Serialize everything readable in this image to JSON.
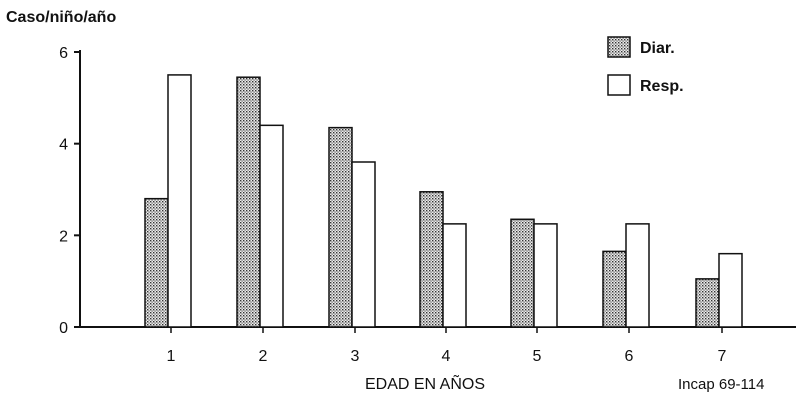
{
  "chart_data": {
    "type": "bar",
    "ylabel": "Caso/niño/año",
    "xlabel": "EDAD EN AÑOS",
    "annotation": "Incap 69-114",
    "categories": [
      "1",
      "2",
      "3",
      "4",
      "5",
      "6",
      "7"
    ],
    "series": [
      {
        "name": "Diar.",
        "values": [
          2.8,
          5.45,
          4.35,
          2.95,
          2.35,
          1.65,
          1.05
        ],
        "fill": "stippled"
      },
      {
        "name": "Resp.",
        "values": [
          5.5,
          4.4,
          3.6,
          2.25,
          2.25,
          2.25,
          1.6
        ],
        "fill": "white"
      }
    ],
    "yticks": [
      0,
      2,
      4,
      6
    ],
    "ylim": [
      0,
      6
    ],
    "grid": false,
    "legend": "top-right"
  },
  "colors": {
    "ink": "#111111",
    "stipple": "#9a9a9a",
    "background": "#ffffff"
  }
}
